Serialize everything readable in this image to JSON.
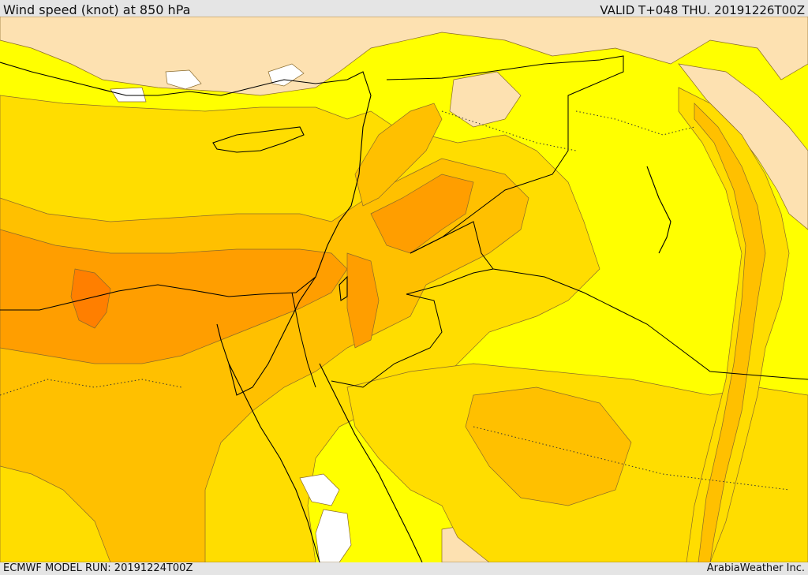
{
  "header": {
    "title": "Wind speed (knot) at 850 hPa",
    "valid": "VALID T+048 THU. 20191226T00Z"
  },
  "footer": {
    "model_run": "ECMWF MODEL RUN: 20191224T00Z",
    "credit": "ArabiaWeather Inc."
  },
  "colors": {
    "very_light": "#fde1b1",
    "light_yellow": "#ffff00",
    "yellow_gold": "#ffdd00",
    "gold": "#ffc000",
    "orange": "#ff9e00",
    "dark_orange": "#ff7f00",
    "water": "#ffffff",
    "border": "#000000"
  }
}
